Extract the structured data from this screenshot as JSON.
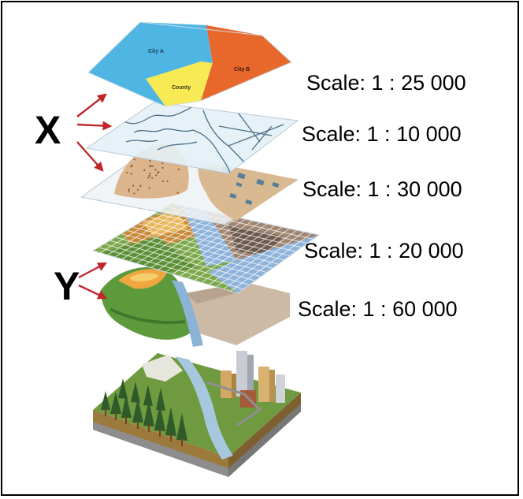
{
  "markers": {
    "x_label": "X",
    "y_label": "Y"
  },
  "layers": [
    {
      "id": "political",
      "scale_text": "Scale: 1 : 25 000",
      "regions": [
        "City A",
        "County",
        "City B"
      ]
    },
    {
      "id": "roads",
      "scale_text": "Scale: 1 : 10 000"
    },
    {
      "id": "terrain-features",
      "scale_text": "Scale: 1 : 30 000"
    },
    {
      "id": "raster-grid",
      "scale_text": "Scale: 1 : 20 000"
    },
    {
      "id": "elevation",
      "scale_text": "Scale: 1 : 60 000"
    },
    {
      "id": "real-world"
    }
  ],
  "colors": {
    "city_a": "#4fb6e3",
    "county": "#f7ea55",
    "city_b": "#e8672a",
    "arrow": "#c0272d",
    "roads_plane": "#e3f1f7",
    "roads_line": "#4f6f86"
  }
}
